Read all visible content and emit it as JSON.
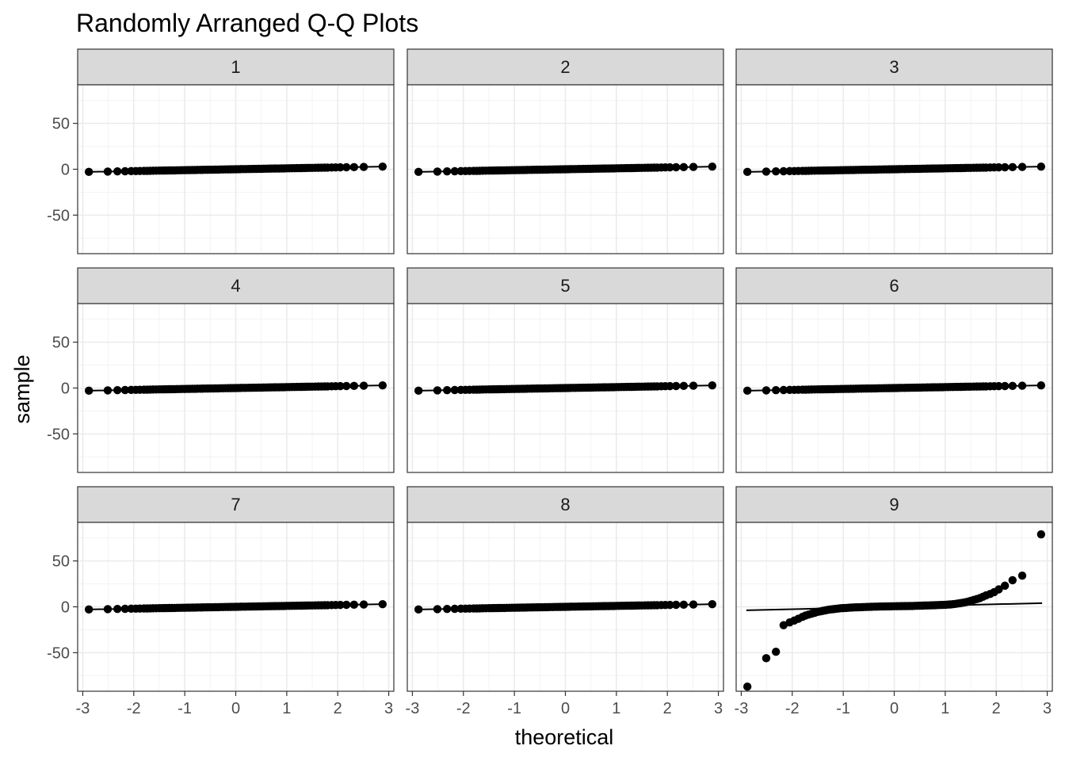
{
  "chart_data": {
    "type": "scatter",
    "subtype": "qq-facets",
    "title": "Randomly Arranged Q-Q Plots",
    "xlabel": "theoretical",
    "ylabel": "sample",
    "xlim": [
      -3.1,
      3.1
    ],
    "ylim": [
      -92,
      92
    ],
    "x_ticks": [
      -3,
      -2,
      -1,
      0,
      1,
      2,
      3
    ],
    "x_tick_labels": [
      "-3",
      "-2",
      "-1",
      "0",
      "1",
      "2",
      "3"
    ],
    "y_ticks": [
      -50,
      0,
      50
    ],
    "y_tick_labels": [
      "-50",
      "0",
      "50"
    ],
    "grid": true,
    "theme": "black-white",
    "layout": {
      "rows": 3,
      "cols": 3
    },
    "colors": {
      "points": "#000000",
      "line": "#000000",
      "strip_fill": "#d9d9d9",
      "grid_major": "#ebebeb",
      "grid_minor": "#f3f3f3",
      "panel_border": "#333333"
    },
    "theoretical_quantiles": [
      -2.88,
      -2.51,
      -2.32,
      -2.17,
      -2.05,
      -1.96,
      -1.88,
      -1.8,
      -1.74,
      -1.68,
      -1.62,
      -1.56,
      -1.5,
      -1.45,
      -1.4,
      -1.35,
      -1.3,
      -1.25,
      -1.2,
      -1.15,
      -1.1,
      -1.05,
      -1.0,
      -0.95,
      -0.9,
      -0.85,
      -0.8,
      -0.75,
      -0.7,
      -0.65,
      -0.6,
      -0.55,
      -0.5,
      -0.45,
      -0.4,
      -0.35,
      -0.3,
      -0.25,
      -0.2,
      -0.15,
      -0.1,
      -0.05,
      0.0,
      0.05,
      0.1,
      0.15,
      0.2,
      0.25,
      0.3,
      0.35,
      0.4,
      0.45,
      0.5,
      0.55,
      0.6,
      0.65,
      0.7,
      0.75,
      0.8,
      0.85,
      0.9,
      0.95,
      1.0,
      1.05,
      1.1,
      1.15,
      1.2,
      1.25,
      1.3,
      1.35,
      1.4,
      1.45,
      1.5,
      1.56,
      1.62,
      1.68,
      1.74,
      1.8,
      1.88,
      1.96,
      2.05,
      2.17,
      2.32,
      2.51,
      2.88
    ],
    "panels": [
      {
        "label": "1",
        "line": [
          -2.9,
          -2.9,
          2.9,
          2.9
        ]
      },
      {
        "label": "2",
        "line": [
          -2.9,
          -2.9,
          2.9,
          2.9
        ]
      },
      {
        "label": "3",
        "line": [
          -2.9,
          -2.9,
          2.9,
          2.9
        ]
      },
      {
        "label": "4",
        "line": [
          -2.9,
          -2.9,
          2.9,
          2.9
        ]
      },
      {
        "label": "5",
        "line": [
          -2.9,
          -2.9,
          2.9,
          2.9
        ]
      },
      {
        "label": "6",
        "line": [
          -2.9,
          -2.9,
          2.9,
          2.9
        ]
      },
      {
        "label": "7",
        "line": [
          -2.9,
          -2.9,
          2.9,
          2.9
        ]
      },
      {
        "label": "8",
        "line": [
          -2.9,
          -2.9,
          2.9,
          2.9
        ]
      },
      {
        "label": "9",
        "line": [
          -2.9,
          -3.8,
          2.9,
          4.0
        ],
        "sample": [
          -87,
          -56,
          -49,
          -20,
          -17,
          -15,
          -13,
          -11,
          -9.5,
          -8.5,
          -7.5,
          -6.5,
          -5.5,
          -5,
          -4.4,
          -3.8,
          -3.3,
          -2.9,
          -2.5,
          -2.2,
          -1.9,
          -1.6,
          -1.4,
          -1.2,
          -1.0,
          -0.85,
          -0.7,
          -0.55,
          -0.45,
          -0.35,
          -0.25,
          -0.15,
          -0.05,
          0.05,
          0.15,
          0.2,
          0.3,
          0.35,
          0.4,
          0.45,
          0.5,
          0.55,
          0.6,
          0.65,
          0.7,
          0.75,
          0.8,
          0.85,
          0.9,
          0.95,
          1.0,
          1.1,
          1.2,
          1.3,
          1.4,
          1.5,
          1.6,
          1.7,
          1.8,
          1.9,
          2.0,
          2.1,
          2.2,
          2.4,
          2.6,
          2.9,
          3.2,
          3.6,
          4.0,
          4.5,
          5.0,
          5.7,
          6.5,
          7.5,
          8.5,
          9.5,
          11,
          12.5,
          14,
          16,
          19,
          23,
          29,
          34,
          79
        ]
      }
    ]
  }
}
